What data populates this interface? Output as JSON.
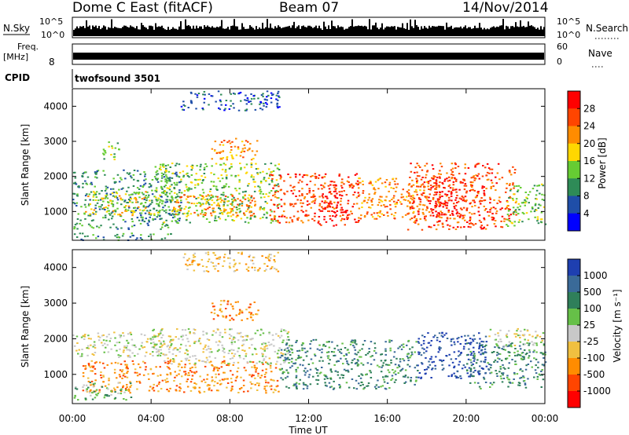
{
  "header": {
    "site": "Dome C East (fitACF)",
    "beam": "Beam 07",
    "date": "14/Nov/2014"
  },
  "strips": {
    "nsky_label": "N.Sky",
    "nsky_tick_top": "10^5",
    "nsky_tick_bottom": "10^0",
    "nsearch_label": "N.Search",
    "nsearch_tick_top": "10^5",
    "nsearch_tick_bottom": "10^0",
    "freq_label": "Freq.",
    "freq_unit": "[MHz]",
    "freq_tick": "8",
    "nave_label": "Nave",
    "nave_tick_top": "60",
    "nave_tick_bottom": "0",
    "cpid_label": "CPID",
    "cpid_value": "twofsound 3501"
  },
  "colors": {
    "power_scale": [
      "#0000ff",
      "#1f4ea8",
      "#2e8b57",
      "#66cc33",
      "#ffd700",
      "#ff8c00",
      "#ff4500",
      "#ff0000"
    ],
    "velocity_scale": [
      "#1e3fb0",
      "#3a6a98",
      "#2f7f5a",
      "#66c048",
      "#c8c8c8",
      "#f0c040",
      "#ff8c00",
      "#ff4500",
      "#ff0000"
    ]
  },
  "chart_data": [
    {
      "type": "heatmap",
      "panel": "power",
      "ylabel": "Slant Range [km]",
      "ylim": [
        180,
        4500
      ],
      "yticks": [
        "1000",
        "2000",
        "3000",
        "4000"
      ],
      "xlim": [
        0,
        24
      ],
      "colorbar_title": "Power [dB]",
      "colorbar_ticks": [
        "4",
        "8",
        "12",
        "16",
        "20",
        "24",
        "28"
      ],
      "colorbar_range": [
        0,
        32
      ],
      "bands": [
        {
          "t0": 0.0,
          "t1": 5.5,
          "r0": 500,
          "r1": 2200,
          "level": 2
        },
        {
          "t0": 0.5,
          "t1": 4.0,
          "r0": 900,
          "r1": 1600,
          "level": 4
        },
        {
          "t0": 4.0,
          "t1": 10.5,
          "r0": 700,
          "r1": 2400,
          "level": 3
        },
        {
          "t0": 5.0,
          "t1": 9.5,
          "r0": 900,
          "r1": 1500,
          "level": 5
        },
        {
          "t0": 7.0,
          "t1": 9.5,
          "r0": 2500,
          "r1": 3100,
          "level": 5
        },
        {
          "t0": 10.0,
          "t1": 14.5,
          "r0": 700,
          "r1": 2100,
          "level": 6
        },
        {
          "t0": 12.5,
          "t1": 14.0,
          "r0": 600,
          "r1": 1600,
          "level": 7
        },
        {
          "t0": 14.5,
          "t1": 18.0,
          "r0": 800,
          "r1": 2000,
          "level": 5
        },
        {
          "t0": 17.0,
          "t1": 22.5,
          "r0": 500,
          "r1": 2400,
          "level": 6
        },
        {
          "t0": 18.0,
          "t1": 20.0,
          "r0": 900,
          "r1": 2000,
          "level": 7
        },
        {
          "t0": 22.0,
          "t1": 24.0,
          "r0": 600,
          "r1": 1800,
          "level": 3
        },
        {
          "t0": 1.5,
          "t1": 2.5,
          "r0": 2500,
          "r1": 3000,
          "level": 3
        },
        {
          "t0": 0.0,
          "t1": 5.0,
          "r0": 200,
          "r1": 400,
          "level": 2
        },
        {
          "t0": 5.5,
          "t1": 10.5,
          "r0": 3900,
          "r1": 4450,
          "level": 1
        }
      ]
    },
    {
      "type": "heatmap",
      "panel": "velocity",
      "ylabel": "Slant Range [km]",
      "xlabel": "Time UT",
      "ylim": [
        180,
        4500
      ],
      "yticks": [
        "1000",
        "2000",
        "3000",
        "4000"
      ],
      "xlim": [
        0,
        24
      ],
      "xticks": [
        "00:00",
        "04:00",
        "08:00",
        "12:00",
        "16:00",
        "20:00",
        "00:00"
      ],
      "colorbar_title": "Velocity [m s⁻¹]",
      "colorbar_ticks": [
        "1000",
        "500",
        "100",
        "25",
        "-25",
        "-100",
        "-500",
        "-1000"
      ],
      "bands": [
        {
          "t0": 0.0,
          "t1": 5.0,
          "r0": 1500,
          "r1": 2200,
          "level": 4
        },
        {
          "t0": 0.5,
          "t1": 10.5,
          "r0": 500,
          "r1": 1400,
          "level": 6
        },
        {
          "t0": 4.0,
          "t1": 11.0,
          "r0": 1300,
          "r1": 2300,
          "level": 4
        },
        {
          "t0": 7.0,
          "t1": 9.5,
          "r0": 2500,
          "r1": 3100,
          "level": 6
        },
        {
          "t0": 10.5,
          "t1": 17.5,
          "r0": 600,
          "r1": 2000,
          "level": 2
        },
        {
          "t0": 17.5,
          "t1": 21.0,
          "r0": 900,
          "r1": 2200,
          "level": 0
        },
        {
          "t0": 20.0,
          "t1": 24.0,
          "r0": 600,
          "r1": 1900,
          "level": 2
        },
        {
          "t0": 21.0,
          "t1": 24.0,
          "r0": 1800,
          "r1": 2300,
          "level": 4
        },
        {
          "t0": 0.0,
          "t1": 3.0,
          "r0": 300,
          "r1": 800,
          "level": 3
        },
        {
          "t0": 5.5,
          "t1": 10.5,
          "r0": 3900,
          "r1": 4450,
          "level": 5
        }
      ]
    }
  ],
  "nave_value": 30
}
